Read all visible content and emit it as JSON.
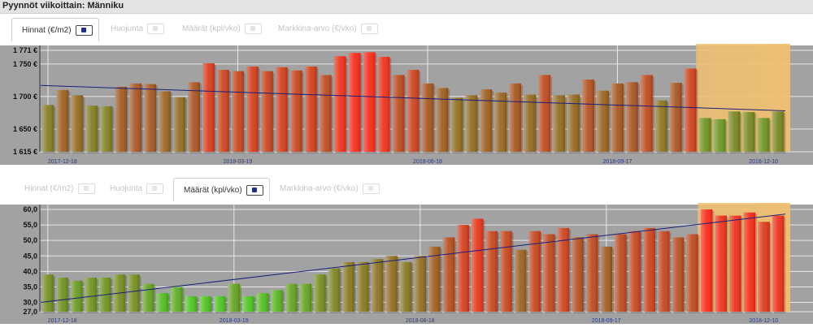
{
  "window": {
    "title": "Pyynnöt viikoittain: Männiku"
  },
  "tabs_top": [
    {
      "label": "Hinnat (€/m2)",
      "active": true
    },
    {
      "label": "Huojunta",
      "active": false
    },
    {
      "label": "Määrät (kpl/vko)",
      "active": false
    },
    {
      "label": "Markkina-arvo (€/vko)",
      "active": false
    }
  ],
  "tabs_bottom": [
    {
      "label": "Hinnat (€/m2)",
      "active": false
    },
    {
      "label": "Huojunta",
      "active": false
    },
    {
      "label": "Määrät (kpl/vko)",
      "active": true
    },
    {
      "label": "Markkina-arvo (€/vko)",
      "active": false
    }
  ],
  "colors": {
    "plot_background": "#a2a2a2",
    "trend_line": "#1a1f7a",
    "highlight": "#f0c070",
    "bar_low": "#33ee22",
    "bar_high": "#ff2a1a"
  },
  "chart_data": [
    {
      "type": "bar",
      "name": "Hinnat (€/m2)",
      "x_tick_labels": [
        "2017-12-18",
        "2018-03-19",
        "2018-06-18",
        "2018-09-17",
        "2018-12-10"
      ],
      "y_tick_labels": [
        "1 771 €",
        "1 750 €",
        "1 700 €",
        "1 650 €",
        "1 615 €"
      ],
      "y_ticks": [
        1771,
        1750,
        1700,
        1650,
        1615
      ],
      "ylim": [
        1615,
        1771
      ],
      "grid": true,
      "trend_line": {
        "start": 1717,
        "end": 1678
      },
      "highlight_last_n": 6,
      "values": [
        1687,
        1710,
        1702,
        1686,
        1685,
        1715,
        1720,
        1719,
        1708,
        1699,
        1722,
        1751,
        1741,
        1739,
        1746,
        1739,
        1745,
        1740,
        1746,
        1733,
        1762,
        1767,
        1768,
        1761,
        1733,
        1741,
        1720,
        1713,
        1698,
        1702,
        1711,
        1706,
        1720,
        1703,
        1733,
        1702,
        1703,
        1726,
        1709,
        1720,
        1722,
        1733,
        1694,
        1721,
        1743,
        1667,
        1665,
        1677,
        1676,
        1667,
        1677
      ]
    },
    {
      "type": "bar",
      "name": "Määrät (kpl/vko)",
      "x_tick_labels": [
        "2017-12-18",
        "2018-03-19",
        "2018-06-18",
        "2018-09-17",
        "2018-12-10"
      ],
      "y_tick_labels": [
        "60,0",
        "55,0",
        "50,0",
        "45,0",
        "40,0",
        "35,0",
        "30,0",
        "27,0"
      ],
      "y_ticks": [
        60,
        55,
        50,
        45,
        40,
        35,
        30,
        27
      ],
      "ylim": [
        27,
        60
      ],
      "grid": true,
      "trend_line": {
        "start": 30,
        "end": 58.5
      },
      "highlight_last_n": 6,
      "values": [
        39,
        38,
        37,
        38,
        38,
        39,
        39,
        36,
        33,
        35,
        32,
        32,
        32,
        36,
        32,
        33,
        34,
        36,
        36,
        39,
        41,
        43,
        43,
        44,
        45,
        43,
        45,
        48,
        51,
        55,
        57,
        53,
        53,
        47,
        53,
        52,
        54,
        51,
        52,
        48,
        52,
        53,
        54,
        53,
        51,
        52,
        60,
        58,
        58,
        59,
        56,
        58
      ]
    }
  ]
}
